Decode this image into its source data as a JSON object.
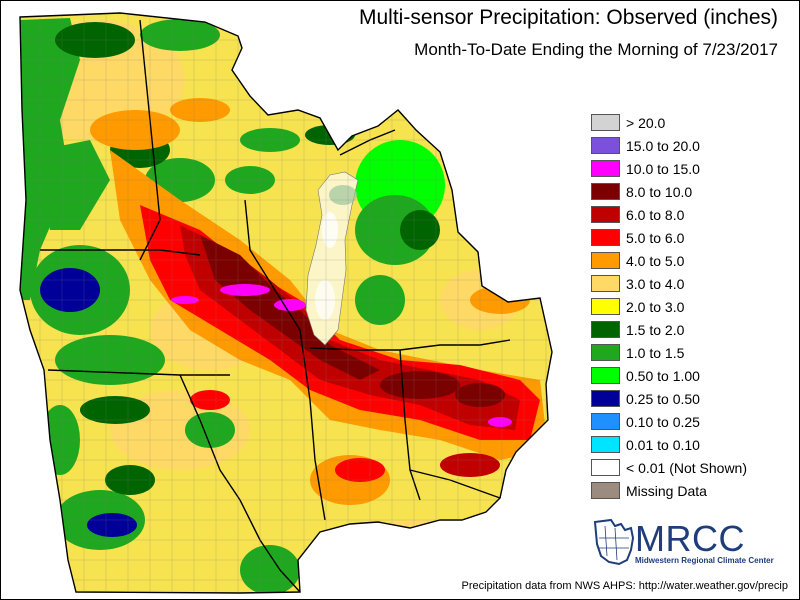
{
  "header": {
    "title": "Multi-sensor Precipitation: Observed (inches)",
    "subtitle": "Month-To-Date Ending the Morning of 7/23/2017"
  },
  "legend": [
    {
      "label": "> 20.0",
      "color": "#d3d3d3"
    },
    {
      "label": "15.0 to 20.0",
      "color": "#7a50dc"
    },
    {
      "label": "10.0 to 15.0",
      "color": "#ff00ff"
    },
    {
      "label": "8.0 to 10.0",
      "color": "#7b0000"
    },
    {
      "label": "6.0 to 8.0",
      "color": "#c00000"
    },
    {
      "label": "5.0 to 6.0",
      "color": "#ff0000"
    },
    {
      "label": "4.0 to 5.0",
      "color": "#ff9a00"
    },
    {
      "label": "3.0 to 4.0",
      "color": "#ffd966"
    },
    {
      "label": "2.0 to 3.0",
      "color": "#ffff00"
    },
    {
      "label": "1.5 to 2.0",
      "color": "#006400"
    },
    {
      "label": "1.0 to 1.5",
      "color": "#1fa81f"
    },
    {
      "label": "0.50 to 1.00",
      "color": "#00ff00"
    },
    {
      "label": "0.25 to 0.50",
      "color": "#000099"
    },
    {
      "label": "0.10 to 0.25",
      "color": "#1e90ff"
    },
    {
      "label": "0.01 to 0.10",
      "color": "#00e5ff"
    },
    {
      "label": "< 0.01 (Not Shown)",
      "color": "#ffffff"
    },
    {
      "label": "Missing Data",
      "color": "#9c8b7f"
    }
  ],
  "logo": {
    "name": "MRCC",
    "full_name": "Midwestern Regional Climate Center"
  },
  "footer": {
    "credit": "Precipitation data from NWS AHPS: http://water.weather.gov/precip"
  },
  "colors": {
    "lake": "#fbf5c8",
    "base": "#f6e34f"
  }
}
